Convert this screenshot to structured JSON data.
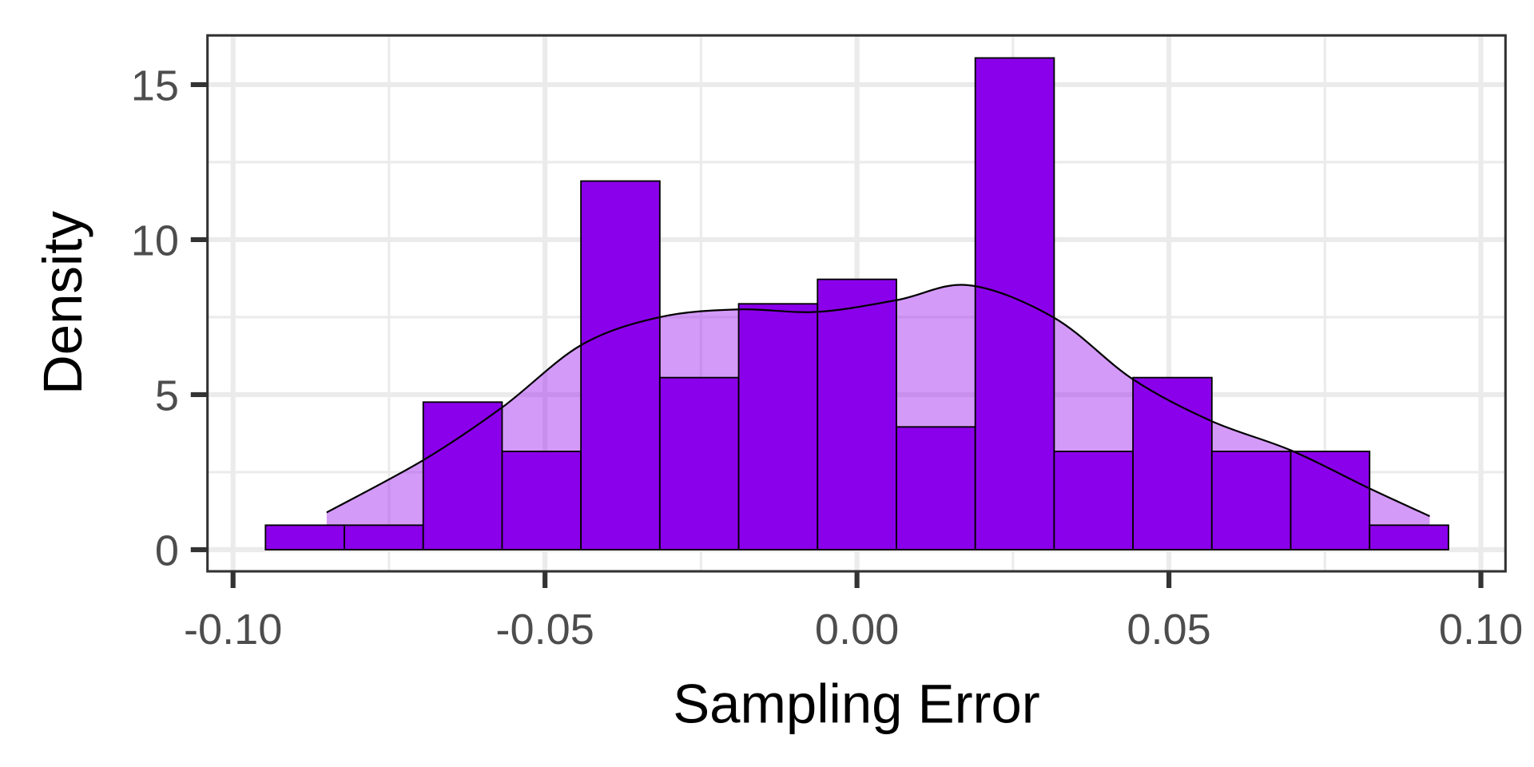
{
  "chart_data": {
    "type": "bar",
    "subtype": "histogram with density overlay",
    "title": "",
    "xlabel": "Sampling Error",
    "ylabel": "Density",
    "xlim": [
      -0.104,
      0.104
    ],
    "ylim": [
      -0.8,
      16.5
    ],
    "x_ticks": [
      -0.1,
      -0.05,
      0.0,
      0.05,
      0.1
    ],
    "x_tick_labels": [
      "-0.10",
      "-0.05",
      "0.00",
      "0.05",
      "0.10"
    ],
    "y_ticks": [
      0,
      5,
      10,
      15
    ],
    "y_tick_labels": [
      "0",
      "5",
      "10",
      "15"
    ],
    "grid": true,
    "bins": {
      "start": -0.0948,
      "width": 0.01264,
      "values": [
        0.79,
        0.79,
        4.76,
        3.17,
        11.89,
        5.55,
        7.93,
        8.72,
        3.96,
        15.86,
        3.17,
        5.55,
        3.17,
        3.17,
        0.79
      ]
    },
    "density_curve": {
      "x": [
        -0.085,
        -0.0694,
        -0.0568,
        -0.0442,
        -0.0316,
        -0.019,
        -0.0064,
        0.0064,
        0.0179,
        0.0316,
        0.0442,
        0.0568,
        0.0696,
        0.0822,
        0.0918
      ],
      "y": [
        1.2,
        2.9,
        4.6,
        6.6,
        7.5,
        7.75,
        7.67,
        8.05,
        8.53,
        7.48,
        5.5,
        4.15,
        3.2,
        1.97,
        1.08
      ]
    },
    "colors": {
      "bar_fill": "#8b00ea",
      "bar_stroke": "#000000",
      "density_fill": "#a020f0",
      "density_fill_opacity": 0.45,
      "grid": "#ebebeb",
      "panel_border": "#333333"
    }
  }
}
